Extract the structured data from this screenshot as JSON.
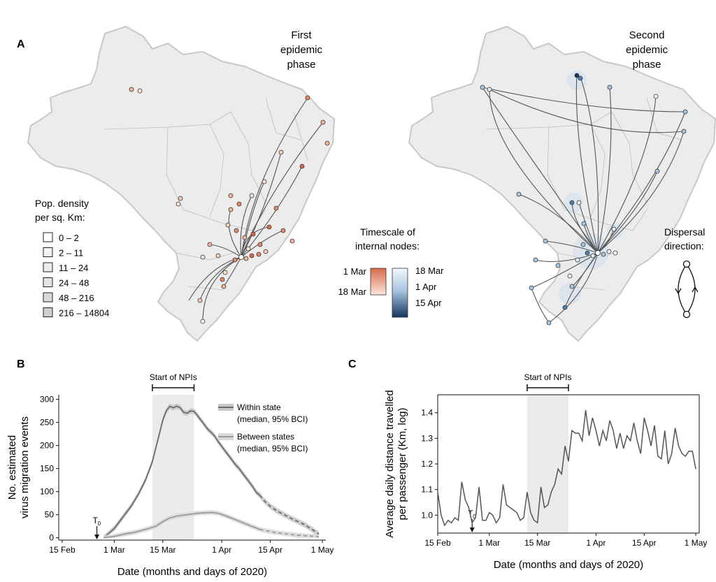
{
  "panel_labels": {
    "a": "A",
    "b": "B",
    "c": "C"
  },
  "maps": {
    "first_title": [
      "First",
      "epidemic",
      "phase"
    ],
    "second_title": [
      "Second",
      "epidemic",
      "phase"
    ],
    "density_legend": {
      "title": [
        "Pop. density",
        "per sq. Km:"
      ],
      "items": [
        "0 – 2",
        "2 – 11",
        "11 – 24",
        "24 – 48",
        "48 – 216",
        "216 – 14804"
      ],
      "colors": [
        "#ffffff",
        "#f4f4f4",
        "#ececec",
        "#e3e3e3",
        "#d9d9d9",
        "#cfcfcf"
      ]
    },
    "timescale_legend": {
      "title": [
        "Timescale of",
        "internal nodes:"
      ],
      "first_labels": [
        "1 Mar",
        "18 Mar"
      ],
      "second_labels": [
        "18 Mar",
        "1 Apr",
        "15 Apr"
      ]
    },
    "dispersal_legend": {
      "title": [
        "Dispersal",
        "direction:"
      ]
    },
    "colors": {
      "map_fill": "#ececec",
      "map_border": "#cccccc",
      "line": "#555555",
      "red_dark": "#d9694b",
      "red_light": "#fbe3d6",
      "blue_dark": "#17365f",
      "blue_light": "#e8f0f8"
    }
  },
  "chart_data": [
    {
      "type": "line",
      "title": "",
      "npi_label": "Start of NPIs",
      "t0_label": "T",
      "t0_sub": "0",
      "xlabel": "Date (months and days of 2020)",
      "ylabel": [
        "No. estimated",
        "virus migration events"
      ],
      "xticks": [
        "15 Feb",
        "1 Mar",
        "15 Mar",
        "1 Apr",
        "15 Apr",
        "1 May"
      ],
      "x_tick_days": [
        0,
        15,
        29,
        46,
        60,
        75
      ],
      "xlim_days": [
        -1,
        76
      ],
      "ylim": [
        -5,
        310
      ],
      "yticks": [
        0,
        50,
        100,
        150,
        200,
        250,
        300
      ],
      "npi_window_days": [
        26,
        38
      ],
      "t0_day": 10,
      "dashed_from_day": 57,
      "legend": [
        "Within state",
        "(median, 95% BCI)",
        "Between states",
        "(median, 95% BCI)"
      ],
      "series": [
        {
          "name": "Within state",
          "x_days": [
            12,
            15,
            18,
            20,
            22,
            24,
            25,
            26,
            27,
            28,
            29,
            30,
            31,
            32,
            33,
            34,
            35,
            36,
            37,
            38,
            39,
            40,
            41,
            42,
            43,
            44,
            45,
            46,
            47,
            48,
            49,
            50,
            51,
            52,
            53,
            54,
            55,
            56,
            57,
            58,
            60,
            62,
            64,
            66,
            68,
            70,
            72,
            74
          ],
          "values": [
            0,
            20,
            50,
            70,
            95,
            125,
            145,
            165,
            195,
            225,
            255,
            275,
            285,
            282,
            285,
            282,
            272,
            270,
            275,
            274,
            265,
            255,
            245,
            235,
            228,
            220,
            208,
            198,
            188,
            178,
            168,
            158,
            150,
            140,
            130,
            120,
            110,
            98,
            92,
            82,
            68,
            58,
            50,
            42,
            35,
            28,
            18,
            8
          ],
          "band": 6
        },
        {
          "name": "Between states",
          "x_days": [
            12,
            15,
            18,
            21,
            24,
            27,
            29,
            31,
            33,
            35,
            37,
            39,
            41,
            43,
            45,
            47,
            49,
            51,
            53,
            55,
            57,
            59,
            61,
            63,
            65,
            67,
            69,
            71,
            73,
            74
          ],
          "values": [
            0,
            3,
            8,
            12,
            18,
            25,
            35,
            43,
            47,
            49,
            51,
            53,
            54,
            55,
            53,
            48,
            42,
            36,
            30,
            24,
            18,
            15,
            12,
            10,
            8,
            6,
            5,
            4,
            3,
            2
          ],
          "band": 5
        }
      ]
    },
    {
      "type": "line",
      "title": "",
      "npi_label": "Start of NPIs",
      "t0_label": "T",
      "t0_sub": "0",
      "xlabel": "Date (months and days of 2020)",
      "ylabel": [
        "Average daily distance travelled",
        "per passenger (Km, log)"
      ],
      "xticks": [
        "15 Feb",
        "1 Mar",
        "15 Mar",
        "1 Apr",
        "15 Apr",
        "1 May"
      ],
      "x_tick_days": [
        0,
        15,
        29,
        46,
        60,
        75
      ],
      "xlim_days": [
        0,
        76
      ],
      "ylim": [
        0.93,
        1.47
      ],
      "yticks": [
        1.0,
        1.1,
        1.2,
        1.3,
        1.4
      ],
      "npi_window_days": [
        26,
        38
      ],
      "t0_day": 10,
      "series": [
        {
          "name": "",
          "x_days": [
            0,
            1,
            2,
            3,
            4,
            5,
            6,
            7,
            8,
            9,
            10,
            11,
            12,
            13,
            14,
            15,
            16,
            17,
            18,
            19,
            20,
            21,
            22,
            23,
            24,
            25,
            26,
            27,
            28,
            29,
            30,
            31,
            32,
            33,
            34,
            35,
            36,
            37,
            38,
            39,
            40,
            41,
            42,
            43,
            44,
            45,
            46,
            47,
            48,
            49,
            50,
            51,
            52,
            53,
            54,
            55,
            56,
            57,
            58,
            59,
            60,
            61,
            62,
            63,
            64,
            65,
            66,
            67,
            68,
            69,
            70,
            71,
            72,
            73,
            74,
            75
          ],
          "values": [
            1.09,
            1.0,
            0.96,
            0.98,
            0.97,
            0.99,
            0.98,
            1.13,
            1.06,
            1.03,
            0.97,
            0.99,
            1.11,
            0.98,
            0.98,
            1.01,
            1.0,
            0.97,
            0.99,
            1.12,
            1.04,
            1.03,
            1.02,
            1.01,
            0.98,
            0.99,
            1.09,
            1.01,
            0.98,
            0.97,
            1.11,
            1.03,
            1.04,
            1.09,
            1.12,
            1.18,
            1.16,
            1.27,
            1.21,
            1.33,
            1.32,
            1.32,
            1.29,
            1.41,
            1.31,
            1.38,
            1.33,
            1.27,
            1.33,
            1.29,
            1.37,
            1.33,
            1.26,
            1.32,
            1.26,
            1.31,
            1.29,
            1.36,
            1.29,
            1.24,
            1.38,
            1.33,
            1.27,
            1.35,
            1.23,
            1.22,
            1.33,
            1.2,
            1.24,
            1.34,
            1.27,
            1.24,
            1.23,
            1.25,
            1.25,
            1.18
          ]
        }
      ]
    }
  ]
}
